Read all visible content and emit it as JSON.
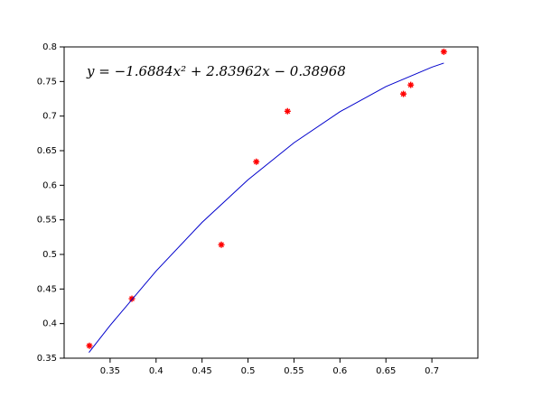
{
  "chart_data": {
    "type": "scatter",
    "annotation": "y = −1.6884x² + 2.83962x − 0.38968",
    "series": [
      {
        "color": "#ff0000",
        "marker": "asterisk",
        "x": [
          0.3275,
          0.3737,
          0.471,
          0.509,
          0.543,
          0.669,
          0.677,
          0.713
        ],
        "values": [
          0.368,
          0.436,
          0.514,
          0.634,
          0.707,
          0.732,
          0.745,
          0.793
        ]
      },
      {
        "color": "#0000cc",
        "marker": "line",
        "x": [
          0.327,
          0.35,
          0.4,
          0.45,
          0.5,
          0.55,
          0.6,
          0.65,
          0.7,
          0.713
        ],
        "values": [
          0.3583,
          0.3974,
          0.476,
          0.5463,
          0.608,
          0.6614,
          0.7063,
          0.7427,
          0.7707,
          0.7766
        ]
      }
    ],
    "xlim": [
      0.3,
      0.75
    ],
    "xticks": [
      0.35,
      0.4,
      0.45,
      0.5,
      0.55,
      0.6,
      0.65,
      0.7
    ],
    "ylim": [
      0.35,
      0.8
    ],
    "yticks": [
      0.35,
      0.4,
      0.45,
      0.5,
      0.55,
      0.6,
      0.65,
      0.7,
      0.75,
      0.8
    ],
    "grid": false
  }
}
